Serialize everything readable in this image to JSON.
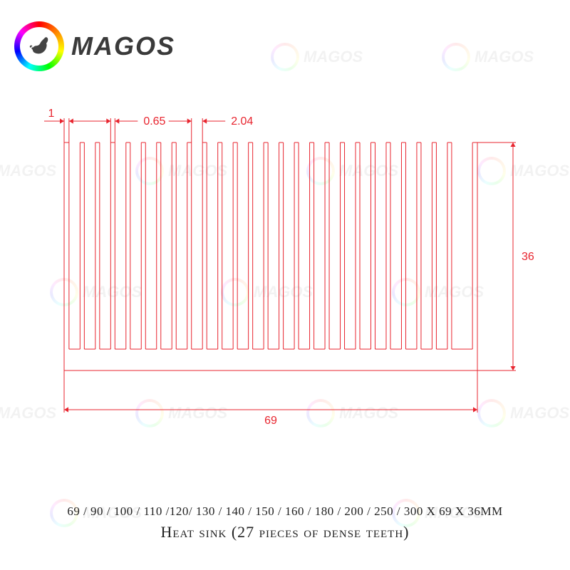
{
  "brand": {
    "name": "MAGOS"
  },
  "diagram": {
    "type": "technical-drawing",
    "stroke_color": "#e8252f",
    "stroke_width": 1,
    "background": "#ffffff",
    "fin_count": 27,
    "dimensions": {
      "edge_thickness": "1",
      "fin_thickness": "0.65",
      "fin_gap": "2.04",
      "total_width": "69",
      "total_height": "36"
    },
    "label_fontsize": 16,
    "label_color": "#e8252f"
  },
  "footer": {
    "sizes": "69 / 90 / 100 / 110 /120/ 130 / 140 / 150 / 160 / 180 / 200 / 250 / 300 X 69 X 36MM",
    "title": "Heat sink (27 pieces of dense teeth)"
  },
  "watermark_text": "MAGOS"
}
